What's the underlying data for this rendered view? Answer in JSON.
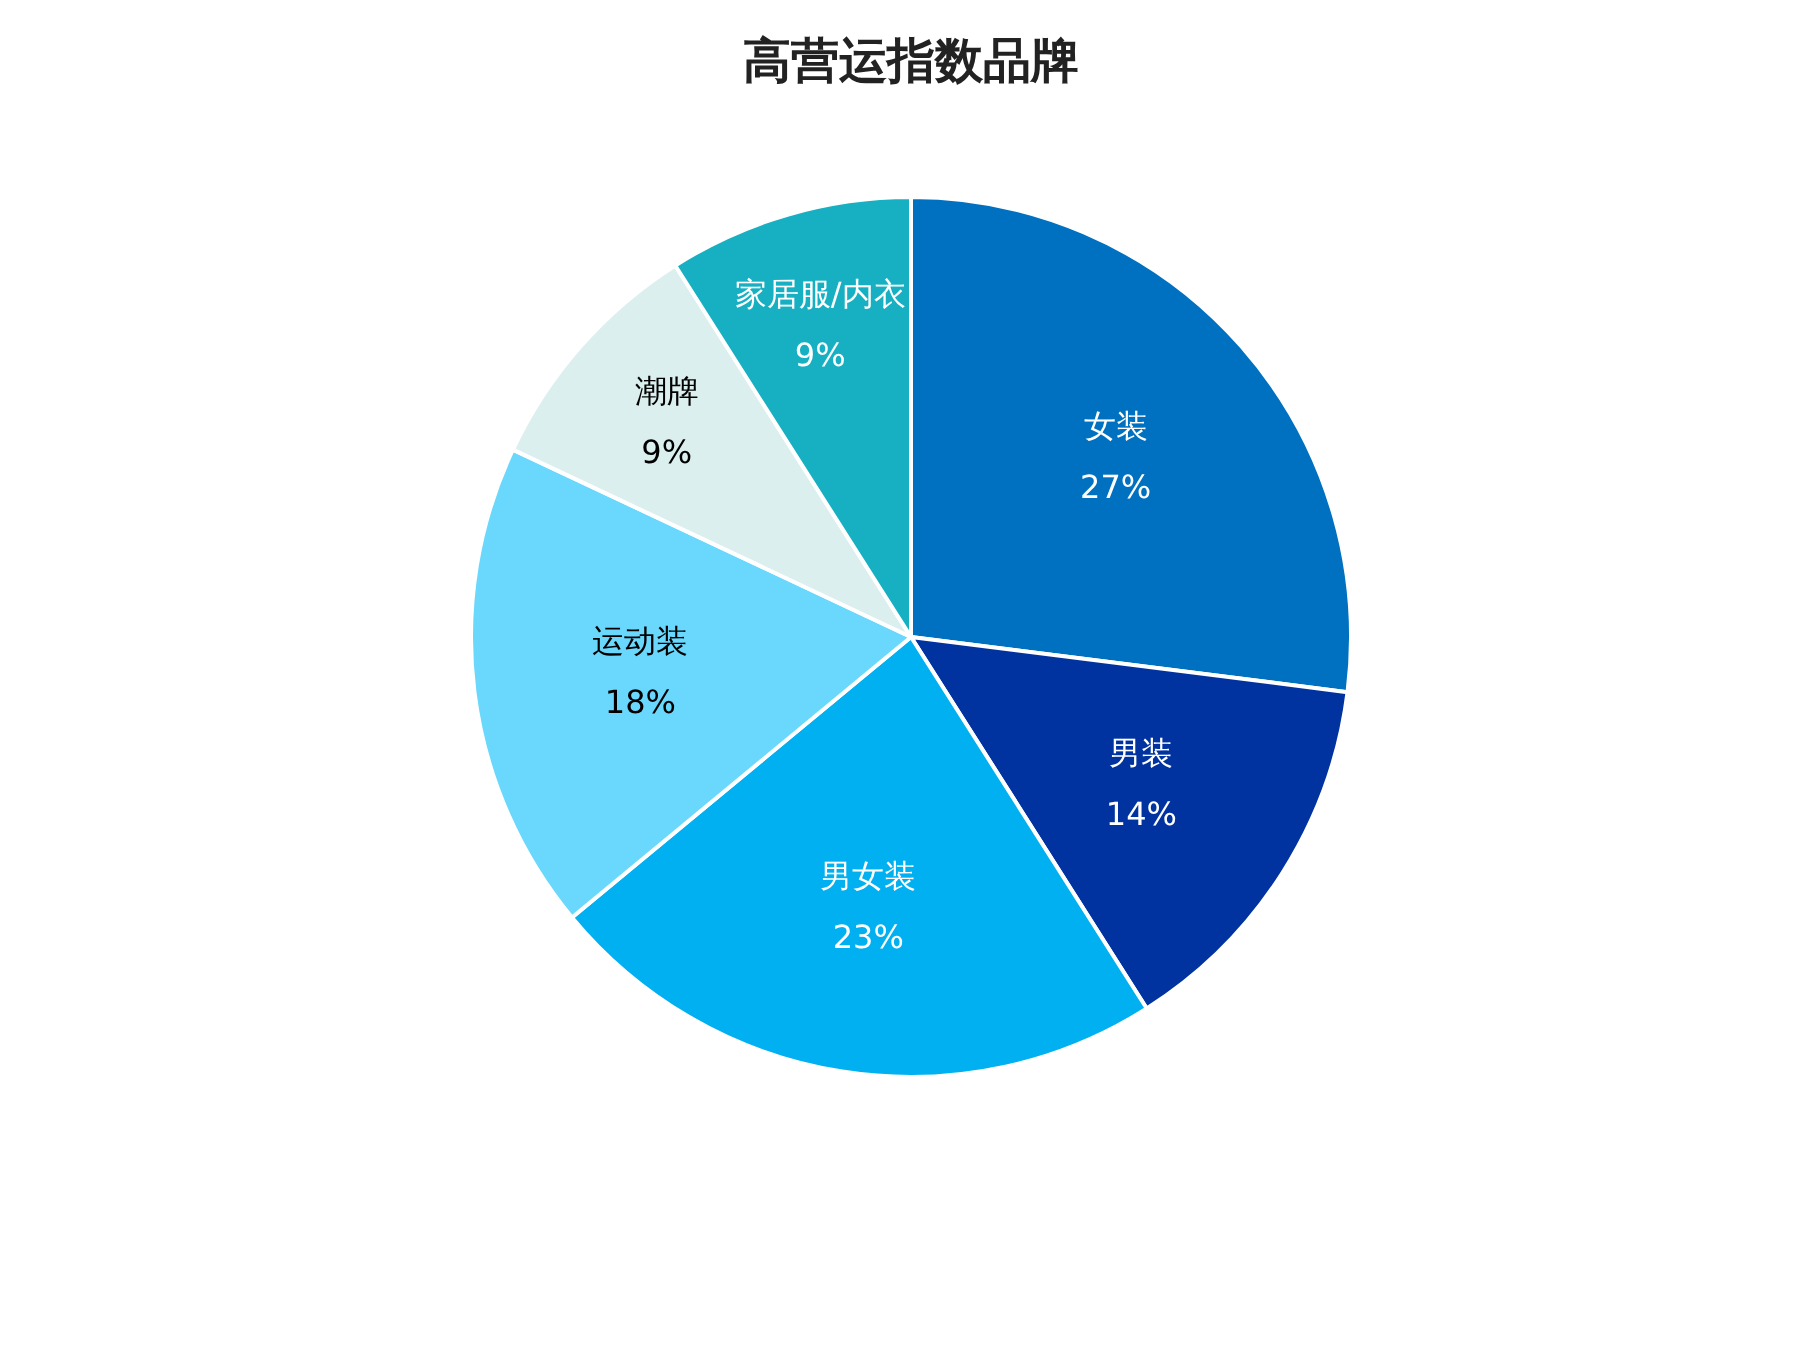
{
  "chart_data": {
    "type": "pie",
    "title": "高营运指数品牌",
    "categories": [
      "女装",
      "男装",
      "男女装",
      "运动装",
      "潮牌",
      "家居服/内衣"
    ],
    "values": [
      27,
      14,
      23,
      18,
      9,
      9
    ],
    "value_labels": [
      "27%",
      "14%",
      "23%",
      "18%",
      "9%",
      "9%"
    ],
    "colors": [
      "#0070c0",
      "#00339f",
      "#00b0f0",
      "#69d8fc",
      "#dcefef",
      "#17b0c2"
    ]
  }
}
